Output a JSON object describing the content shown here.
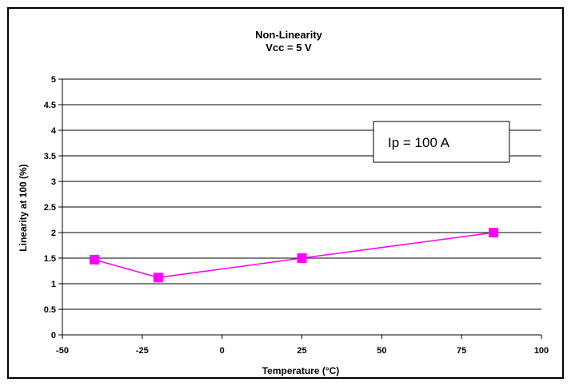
{
  "chart_data": {
    "type": "line",
    "title": "Non-Linearity",
    "subtitle": "Vcc = 5 V",
    "xlabel": "Temperature (°C)",
    "ylabel": "Linearity at 100 (%)",
    "xlim": [
      -50,
      100
    ],
    "ylim": [
      0,
      5
    ],
    "xticks": [
      -50,
      -25,
      0,
      25,
      50,
      75,
      100
    ],
    "yticks": [
      0,
      0.5,
      1,
      1.5,
      2,
      2.5,
      3,
      3.5,
      4,
      4.5,
      5
    ],
    "xtick_labels": [
      "-50",
      "-25",
      "0",
      "25",
      "50",
      "75",
      "100"
    ],
    "ytick_labels": [
      "0",
      "0.5",
      "1",
      "1.5",
      "2",
      "2.5",
      "3",
      "3.5",
      "4",
      "4.5",
      "5"
    ],
    "grid": "horizontal",
    "annotation": "Ip = 100 A",
    "series": [
      {
        "x": [
          -40,
          -20,
          25,
          85
        ],
        "y": [
          1.47,
          1.12,
          1.5,
          2.0
        ],
        "color": "#ff00ff",
        "marker": "square"
      }
    ]
  }
}
